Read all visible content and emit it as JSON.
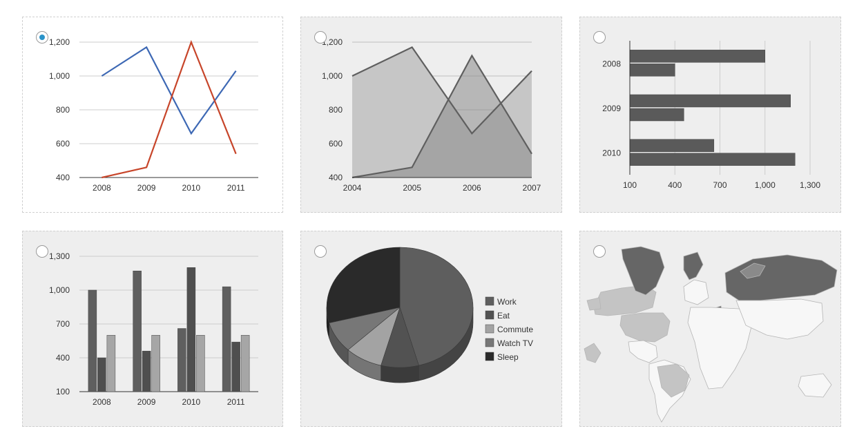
{
  "colors": {
    "accent": "#2a93c9",
    "line_blue": "#3d68b4",
    "line_red": "#c7452a",
    "gray_dark": "#5f5f5f",
    "gray_mid": "#9e9e9e",
    "gray_light": "#c9c9c9",
    "black": "#2a2a2a"
  },
  "charts": [
    {
      "id": "line",
      "selected": true,
      "chart_data": {
        "type": "line",
        "categories": [
          "2008",
          "2009",
          "2010",
          "2011"
        ],
        "series": [
          {
            "values": [
              1000,
              1170,
              660,
              1030
            ],
            "color": "#3d68b4"
          },
          {
            "values": [
              400,
              460,
              1200,
              540
            ],
            "color": "#c7452a"
          }
        ],
        "yticks": [
          "400",
          "600",
          "800",
          "1,000",
          "1,200"
        ],
        "ylim": [
          400,
          1200
        ],
        "grid": true
      }
    },
    {
      "id": "area",
      "selected": false,
      "chart_data": {
        "type": "area",
        "categories": [
          "2004",
          "2005",
          "2006",
          "2007"
        ],
        "series": [
          {
            "values": [
              1000,
              1170,
              660,
              1030
            ]
          },
          {
            "values": [
              400,
              460,
              1120,
              540
            ]
          }
        ],
        "yticks": [
          "400",
          "600",
          "800",
          "1,000",
          "1,200"
        ],
        "ylim": [
          400,
          1200
        ],
        "grid": true
      }
    },
    {
      "id": "hbar",
      "selected": false,
      "chart_data": {
        "type": "bar",
        "orientation": "horizontal",
        "categories": [
          "2008",
          "2009",
          "2010"
        ],
        "series": [
          {
            "values": [
              1000,
              1170,
              660
            ]
          },
          {
            "values": [
              400,
              460,
              1200
            ]
          }
        ],
        "xticks": [
          "100",
          "400",
          "700",
          "1,000",
          "1,300"
        ],
        "xlim": [
          100,
          1300
        ],
        "grid": true
      }
    },
    {
      "id": "vbar",
      "selected": false,
      "chart_data": {
        "type": "bar",
        "orientation": "vertical",
        "categories": [
          "2008",
          "2009",
          "2010",
          "2011"
        ],
        "series": [
          {
            "values": [
              1000,
              1170,
              660,
              1030
            ]
          },
          {
            "values": [
              400,
              460,
              1200,
              540
            ]
          },
          {
            "values": [
              600,
              600,
              600,
              600
            ]
          }
        ],
        "yticks": [
          "100",
          "400",
          "700",
          "1,000",
          "1,300"
        ],
        "ylim": [
          100,
          1300
        ],
        "grid": true
      }
    },
    {
      "id": "pie",
      "selected": false,
      "chart_data": {
        "type": "pie",
        "is3D": true,
        "labels": [
          "Work",
          "Eat",
          "Commute",
          "Watch TV",
          "Sleep"
        ],
        "values": [
          11,
          2,
          2,
          2,
          7
        ],
        "colors": [
          "#5e5e5e",
          "#525252",
          "#a3a3a3",
          "#777777",
          "#2a2a2a"
        ],
        "legend": "right"
      }
    },
    {
      "id": "map",
      "selected": false,
      "chart_data": {
        "type": "geo",
        "region": "world",
        "highlighted": [
          "Greenland",
          "Canada",
          "United States",
          "Brazil",
          "Russia",
          "France",
          "Norway"
        ]
      }
    }
  ]
}
